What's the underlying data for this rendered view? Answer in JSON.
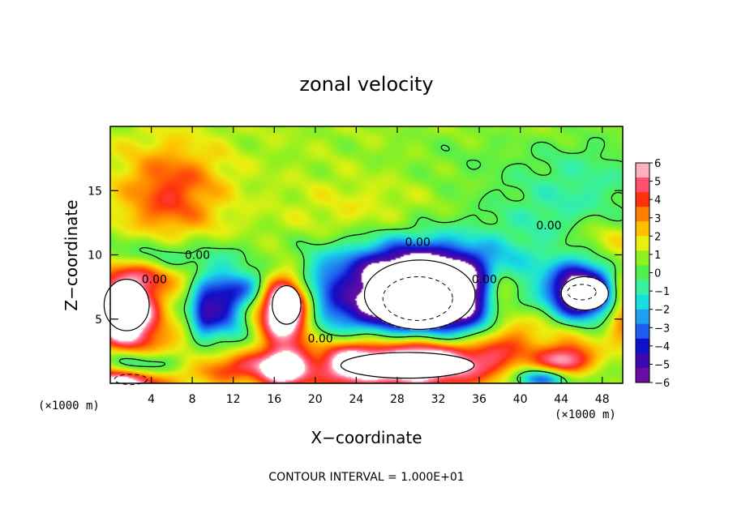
{
  "chart_data": {
    "type": "heatmap",
    "title": "zonal velocity",
    "xlabel": "X−coordinate",
    "ylabel": "Z−coordinate",
    "x_unit_label": "(×1000 m)",
    "z_unit_label": "(×1000 m)",
    "footnote": "CONTOUR INTERVAL = 1.000E+01",
    "x_ticks": [
      "4",
      "8",
      "12",
      "16",
      "20",
      "24",
      "28",
      "32",
      "36",
      "40",
      "44",
      "48"
    ],
    "y_ticks": [
      "5",
      "10",
      "15"
    ],
    "xlim": [
      0,
      50
    ],
    "ylim": [
      0,
      20
    ],
    "grid": false,
    "colorbar": {
      "placement": "right",
      "ticks": [
        "6",
        "5",
        "4",
        "3",
        "2",
        "1",
        "0",
        "−1",
        "−2",
        "−3",
        "−4",
        "−5",
        "−6"
      ],
      "range": [
        -6,
        6
      ],
      "colors": [
        "#6a0da0",
        "#3a0ab0",
        "#1010c8",
        "#1e5cf0",
        "#1ea0f0",
        "#18e0e0",
        "#38f0a0",
        "#50f050",
        "#90f020",
        "#e8f010",
        "#ffc000",
        "#ff8000",
        "#ff3010",
        "#ff5070",
        "#ffb0c0"
      ]
    },
    "contour_labels": [
      {
        "text": "0.00",
        "x": 20.5,
        "z": 3.2
      },
      {
        "text": "0.00",
        "x": 30.0,
        "z": 10.7
      },
      {
        "text": "0.00",
        "x": 36.5,
        "z": 7.8
      },
      {
        "text": "0.00",
        "x": 42.8,
        "z": 12.0
      },
      {
        "text": "0.00",
        "x": 8.5,
        "z": 9.7
      },
      {
        "text": "0.00",
        "x": 4.3,
        "z": 7.8
      }
    ],
    "blobs": [
      {
        "x": 0,
        "z": 20,
        "rx": 30,
        "rz": 8,
        "v": 0.4
      },
      {
        "x": 40,
        "z": 20,
        "rx": 16,
        "rz": 5,
        "v": 0.6
      },
      {
        "x": 6,
        "z": 15.2,
        "rx": 5,
        "rz": 3.4,
        "v": 3.2
      },
      {
        "x": 4,
        "z": 12,
        "rx": 6,
        "rz": 2,
        "v": 1.2
      },
      {
        "x": 2,
        "z": 11,
        "rx": 6,
        "rz": 1.6,
        "v": -1.3
      },
      {
        "x": 44,
        "z": 13,
        "rx": 8,
        "rz": 3.4,
        "v": -1.6
      },
      {
        "x": 36,
        "z": 18,
        "rx": 10,
        "rz": 3,
        "v": -0.8
      },
      {
        "x": 47,
        "z": 17,
        "rx": 6,
        "rz": 3,
        "v": -1.0
      },
      {
        "x": 48,
        "z": 11,
        "rx": 4,
        "rz": 2,
        "v": 2.0
      },
      {
        "x": 24,
        "z": 13,
        "rx": 8,
        "rz": 3,
        "v": 1.0
      },
      {
        "x": 4,
        "z": 8.6,
        "rx": 6,
        "rz": 1.2,
        "v": 2.2
      },
      {
        "x": 1.8,
        "z": 6.2,
        "rx": 3.2,
        "rz": 2.5,
        "v": 6.8
      },
      {
        "x": 1,
        "z": 4.2,
        "rx": 3,
        "rz": 1.6,
        "v": 3.6
      },
      {
        "x": 6,
        "z": 9.6,
        "rx": 5,
        "rz": 1.2,
        "v": -2.0
      },
      {
        "x": 11,
        "z": 6.3,
        "rx": 2.4,
        "rz": 2.8,
        "v": -5.2
      },
      {
        "x": 9,
        "z": 5.5,
        "rx": 1.3,
        "rz": 2.4,
        "v": -3.0
      },
      {
        "x": 14,
        "z": 7.6,
        "rx": 2,
        "rz": 1.2,
        "v": -2.6
      },
      {
        "x": 17,
        "z": 6.2,
        "rx": 2.4,
        "rz": 2.4,
        "v": 6.8
      },
      {
        "x": 17.5,
        "z": 4.8,
        "rx": 2.8,
        "rz": 2.6,
        "v": 3.8
      },
      {
        "x": 20,
        "z": 6,
        "rx": 3,
        "rz": 3.4,
        "v": -2.4
      },
      {
        "x": 5,
        "z": 3,
        "rx": 4,
        "rz": 1.4,
        "v": 1.6
      },
      {
        "x": 12,
        "z": 1.2,
        "rx": 4,
        "rz": 1.3,
        "v": 3.8
      },
      {
        "x": 3,
        "z": 1.4,
        "rx": 4,
        "rz": 1.0,
        "v": -3.5
      },
      {
        "x": 1,
        "z": 0.1,
        "rx": 5,
        "rz": 1.3,
        "v": 6.6
      },
      {
        "x": 17,
        "z": 1.1,
        "rx": 2.5,
        "rz": 1.6,
        "v": 6.2
      },
      {
        "x": 23,
        "z": 1.5,
        "rx": 3,
        "rz": 2,
        "v": 3.8
      },
      {
        "x": 30,
        "z": 1.2,
        "rx": 8,
        "rz": 1.8,
        "v": 6.8
      },
      {
        "x": 31,
        "z": 2.6,
        "rx": 7,
        "rz": 1.4,
        "v": 3.4
      },
      {
        "x": 30,
        "z": 6.9,
        "rx": 7,
        "rz": 3.4,
        "v": -9.5
      },
      {
        "x": 30,
        "z": 9,
        "rx": 9.5,
        "rz": 2.4,
        "v": -3.4
      },
      {
        "x": 35,
        "z": 5,
        "rx": 3,
        "rz": 3,
        "v": -3.0
      },
      {
        "x": 38,
        "z": 7.5,
        "rx": 1.6,
        "rz": 1.4,
        "v": 4.0
      },
      {
        "x": 38,
        "z": 4,
        "rx": 4,
        "rz": 2.5,
        "v": 3.0
      },
      {
        "x": 46,
        "z": 7,
        "rx": 3.2,
        "rz": 2.4,
        "v": -9.0
      },
      {
        "x": 46,
        "z": 4.2,
        "rx": 4,
        "rz": 1.8,
        "v": 2.0
      },
      {
        "x": 44.5,
        "z": 1.8,
        "rx": 2.6,
        "rz": 1.2,
        "v": 5.0
      },
      {
        "x": 50,
        "z": 6,
        "rx": 1.4,
        "rz": 3,
        "v": 3.0
      },
      {
        "x": 42,
        "z": 0.4,
        "rx": 3,
        "rz": 0.8,
        "v": -4.5
      },
      {
        "x": 24,
        "z": 5.5,
        "rx": 3,
        "rz": 1.5,
        "v": -1.4
      }
    ],
    "base_value": 0.7,
    "white_regions": [
      {
        "x": 1.6,
        "z": 6.1,
        "rx": 2.2,
        "rz": 2.0
      },
      {
        "x": 17.2,
        "z": 6.1,
        "rx": 1.4,
        "rz": 1.5
      },
      {
        "x": 30.2,
        "z": 6.9,
        "rx": 5.4,
        "rz": 2.7
      },
      {
        "x": 46.3,
        "z": 7.0,
        "rx": 2.3,
        "rz": 1.3
      },
      {
        "x": 29,
        "z": 1.4,
        "rx": 6.5,
        "rz": 1.0
      }
    ],
    "dashed_contours": [
      {
        "x": 30,
        "z": 6.6,
        "rx": 3.4,
        "rz": 1.7
      },
      {
        "x": 46,
        "z": 7.1,
        "rx": 1.4,
        "rz": 0.6
      },
      {
        "x": 2,
        "z": 0.3,
        "rx": 1.6,
        "rz": 0.4
      }
    ]
  }
}
